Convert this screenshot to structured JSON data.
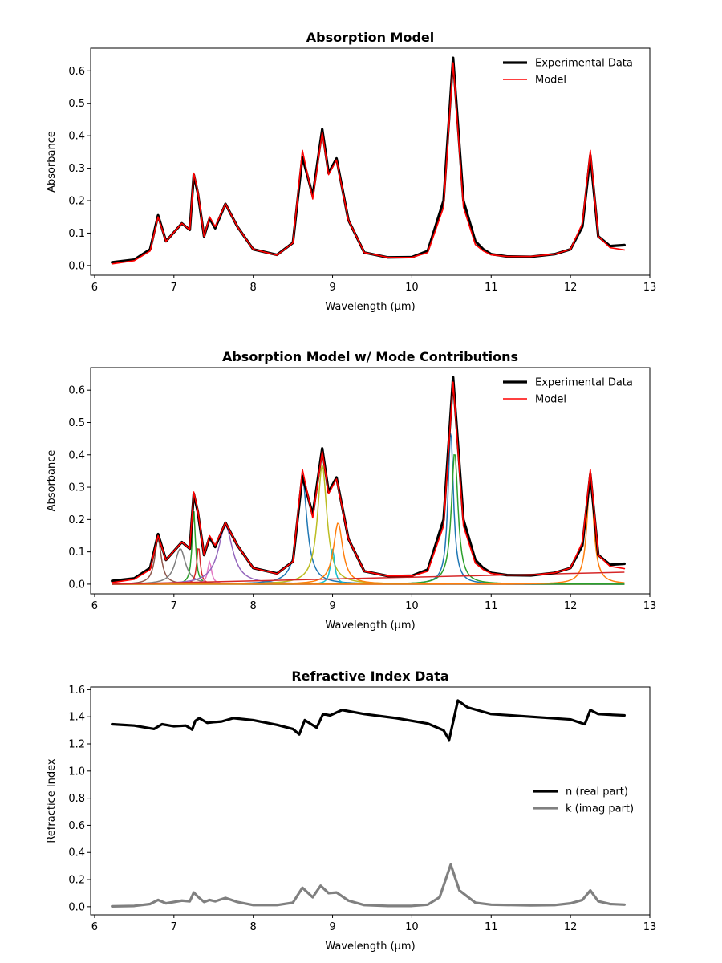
{
  "chart_data": [
    {
      "type": "line",
      "title": "Absorption Model",
      "xlabel": "Wavelength (μm)",
      "ylabel": "Absorbance",
      "xlim": [
        5.95,
        13.0
      ],
      "ylim": [
        -0.03,
        0.67
      ],
      "xticks": [
        6,
        7,
        8,
        9,
        10,
        11,
        12,
        13
      ],
      "xtick_labels": [
        "6",
        "7",
        "8",
        "9",
        "10",
        "11",
        "12",
        "13"
      ],
      "yticks": [
        0.0,
        0.1,
        0.2,
        0.3,
        0.4,
        0.5,
        0.6
      ],
      "ytick_labels": [
        "0.0",
        "0.1",
        "0.2",
        "0.3",
        "0.4",
        "0.5",
        "0.6"
      ],
      "grid": false,
      "legend": "top-right",
      "series": [
        {
          "name": "Experimental Data",
          "color": "#000000",
          "x": [
            6.22,
            6.5,
            6.7,
            6.8,
            6.9,
            7.1,
            7.2,
            7.25,
            7.3,
            7.38,
            7.45,
            7.52,
            7.65,
            7.8,
            8.0,
            8.3,
            8.5,
            8.62,
            8.75,
            8.87,
            8.95,
            9.05,
            9.2,
            9.4,
            9.7,
            10.0,
            10.2,
            10.4,
            10.52,
            10.65,
            10.8,
            10.9,
            11.0,
            11.2,
            11.5,
            11.8,
            12.0,
            12.15,
            12.25,
            12.35,
            12.5,
            12.68
          ],
          "y": [
            0.01,
            0.018,
            0.05,
            0.155,
            0.075,
            0.13,
            0.11,
            0.28,
            0.225,
            0.09,
            0.145,
            0.115,
            0.19,
            0.12,
            0.05,
            0.033,
            0.07,
            0.335,
            0.215,
            0.42,
            0.285,
            0.33,
            0.14,
            0.04,
            0.025,
            0.026,
            0.045,
            0.2,
            0.64,
            0.2,
            0.075,
            0.05,
            0.035,
            0.028,
            0.027,
            0.035,
            0.05,
            0.12,
            0.34,
            0.09,
            0.06,
            0.063
          ]
        },
        {
          "name": "Model",
          "color": "#ff0000",
          "x": [
            6.22,
            6.5,
            6.7,
            6.8,
            6.9,
            7.1,
            7.2,
            7.25,
            7.3,
            7.38,
            7.45,
            7.52,
            7.65,
            7.8,
            8.0,
            8.3,
            8.5,
            8.62,
            8.75,
            8.87,
            8.95,
            9.05,
            9.2,
            9.4,
            9.7,
            10.0,
            10.2,
            10.4,
            10.52,
            10.65,
            10.8,
            10.9,
            11.0,
            11.2,
            11.5,
            11.8,
            12.0,
            12.15,
            12.25,
            12.35,
            12.5,
            12.68
          ],
          "y": [
            0.005,
            0.015,
            0.045,
            0.15,
            0.075,
            0.13,
            0.11,
            0.285,
            0.23,
            0.09,
            0.15,
            0.12,
            0.19,
            0.12,
            0.05,
            0.032,
            0.07,
            0.355,
            0.205,
            0.41,
            0.28,
            0.325,
            0.14,
            0.04,
            0.025,
            0.025,
            0.04,
            0.18,
            0.625,
            0.18,
            0.065,
            0.045,
            0.033,
            0.028,
            0.028,
            0.035,
            0.05,
            0.13,
            0.355,
            0.09,
            0.055,
            0.048
          ]
        }
      ]
    },
    {
      "type": "line",
      "title": "Absorption Model w/ Mode Contributions",
      "xlabel": "Wavelength (μm)",
      "ylabel": "Absorbance",
      "xlim": [
        5.95,
        13.0
      ],
      "ylim": [
        -0.03,
        0.67
      ],
      "xticks": [
        6,
        7,
        8,
        9,
        10,
        11,
        12,
        13
      ],
      "xtick_labels": [
        "6",
        "7",
        "8",
        "9",
        "10",
        "11",
        "12",
        "13"
      ],
      "yticks": [
        0.0,
        0.1,
        0.2,
        0.3,
        0.4,
        0.5,
        0.6
      ],
      "ytick_labels": [
        "0.0",
        "0.1",
        "0.2",
        "0.3",
        "0.4",
        "0.5",
        "0.6"
      ],
      "grid": false,
      "legend": "top-right",
      "series": [
        {
          "name": "Experimental Data",
          "color": "#000000",
          "x": [
            6.22,
            6.5,
            6.7,
            6.8,
            6.9,
            7.1,
            7.2,
            7.25,
            7.3,
            7.38,
            7.45,
            7.52,
            7.65,
            7.8,
            8.0,
            8.3,
            8.5,
            8.62,
            8.75,
            8.87,
            8.95,
            9.05,
            9.2,
            9.4,
            9.7,
            10.0,
            10.2,
            10.4,
            10.52,
            10.65,
            10.8,
            10.9,
            11.0,
            11.2,
            11.5,
            11.8,
            12.0,
            12.15,
            12.25,
            12.35,
            12.5,
            12.68
          ],
          "y": [
            0.01,
            0.018,
            0.05,
            0.155,
            0.075,
            0.13,
            0.11,
            0.28,
            0.225,
            0.09,
            0.145,
            0.115,
            0.19,
            0.12,
            0.05,
            0.033,
            0.07,
            0.335,
            0.215,
            0.42,
            0.285,
            0.33,
            0.14,
            0.04,
            0.025,
            0.026,
            0.045,
            0.2,
            0.64,
            0.2,
            0.075,
            0.05,
            0.035,
            0.028,
            0.027,
            0.035,
            0.05,
            0.12,
            0.34,
            0.09,
            0.06,
            0.063
          ]
        },
        {
          "name": "Model",
          "color": "#ff0000",
          "x": [
            6.22,
            6.5,
            6.7,
            6.8,
            6.9,
            7.1,
            7.2,
            7.25,
            7.3,
            7.38,
            7.45,
            7.52,
            7.65,
            7.8,
            8.0,
            8.3,
            8.5,
            8.62,
            8.75,
            8.87,
            8.95,
            9.05,
            9.2,
            9.4,
            9.7,
            10.0,
            10.2,
            10.4,
            10.52,
            10.65,
            10.8,
            10.9,
            11.0,
            11.2,
            11.5,
            11.8,
            12.0,
            12.15,
            12.25,
            12.35,
            12.5,
            12.68
          ],
          "y": [
            0.005,
            0.015,
            0.045,
            0.15,
            0.075,
            0.13,
            0.11,
            0.285,
            0.23,
            0.09,
            0.15,
            0.12,
            0.19,
            0.12,
            0.05,
            0.032,
            0.07,
            0.355,
            0.205,
            0.41,
            0.28,
            0.325,
            0.14,
            0.04,
            0.025,
            0.025,
            0.04,
            0.18,
            0.625,
            0.18,
            0.065,
            0.045,
            0.033,
            0.028,
            0.028,
            0.035,
            0.05,
            0.13,
            0.355,
            0.09,
            0.055,
            0.048
          ]
        }
      ],
      "mode_contributions": [
        {
          "center": 6.8,
          "peak": 0.14,
          "width": 0.05,
          "color": "#8c564b"
        },
        {
          "center": 7.08,
          "peak": 0.11,
          "width": 0.08,
          "color": "#7f7f7f"
        },
        {
          "center": 7.25,
          "peak": 0.23,
          "width": 0.025,
          "color": "#2ca02c"
        },
        {
          "center": 7.31,
          "peak": 0.12,
          "width": 0.025,
          "color": "#d62728"
        },
        {
          "center": 7.45,
          "peak": 0.07,
          "width": 0.03,
          "color": "#e377c2"
        },
        {
          "center": 7.65,
          "peak": 0.18,
          "width": 0.11,
          "color": "#9467bd"
        },
        {
          "center": 8.62,
          "peak": 0.33,
          "width": 0.07,
          "color": "#1f77b4"
        },
        {
          "center": 8.87,
          "peak": 0.37,
          "width": 0.07,
          "color": "#bcbd22"
        },
        {
          "center": 9.0,
          "peak": 0.11,
          "width": 0.03,
          "color": "#17becf"
        },
        {
          "center": 9.07,
          "peak": 0.19,
          "width": 0.07,
          "color": "#ff7f0e"
        },
        {
          "center": 10.49,
          "peak": 0.48,
          "width": 0.04,
          "color": "#1f77b4"
        },
        {
          "center": 10.54,
          "peak": 0.41,
          "width": 0.05,
          "color": "#2ca02c"
        },
        {
          "center": 12.25,
          "peak": 0.33,
          "width": 0.05,
          "color": "#ff7f0e"
        }
      ],
      "background_line": {
        "x": [
          6.22,
          12.68
        ],
        "y": [
          0.0,
          0.037
        ],
        "color": "#d62728"
      }
    },
    {
      "type": "line",
      "title": "Refractive Index Data",
      "xlabel": "Wavelength (μm)",
      "ylabel": "Refractice Index",
      "xlim": [
        5.95,
        13.0
      ],
      "ylim": [
        -0.06,
        1.62
      ],
      "xticks": [
        6,
        7,
        8,
        9,
        10,
        11,
        12,
        13
      ],
      "xtick_labels": [
        "6",
        "7",
        "8",
        "9",
        "10",
        "11",
        "12",
        "13"
      ],
      "yticks": [
        0.0,
        0.2,
        0.4,
        0.6,
        0.8,
        1.0,
        1.2,
        1.4,
        1.6
      ],
      "ytick_labels": [
        "0.0",
        "0.2",
        "0.4",
        "0.6",
        "0.8",
        "1.0",
        "1.2",
        "1.4",
        "1.6"
      ],
      "grid": false,
      "legend": "center-right",
      "series": [
        {
          "name": "n (real part)",
          "color": "#000000",
          "x": [
            6.22,
            6.5,
            6.75,
            6.85,
            7.0,
            7.15,
            7.23,
            7.27,
            7.32,
            7.42,
            7.5,
            7.6,
            7.75,
            8.0,
            8.3,
            8.5,
            8.58,
            8.65,
            8.8,
            8.88,
            8.97,
            9.12,
            9.4,
            9.8,
            10.2,
            10.4,
            10.47,
            10.58,
            10.7,
            11.0,
            11.5,
            12.0,
            12.18,
            12.25,
            12.35,
            12.5,
            12.68
          ],
          "y": [
            1.345,
            1.335,
            1.31,
            1.345,
            1.33,
            1.335,
            1.305,
            1.37,
            1.39,
            1.355,
            1.36,
            1.365,
            1.39,
            1.375,
            1.34,
            1.31,
            1.27,
            1.375,
            1.32,
            1.42,
            1.41,
            1.45,
            1.42,
            1.39,
            1.35,
            1.3,
            1.23,
            1.52,
            1.47,
            1.42,
            1.4,
            1.38,
            1.345,
            1.45,
            1.42,
            1.415,
            1.41
          ]
        },
        {
          "name": "k (imag part)",
          "color": "#808080",
          "x": [
            6.22,
            6.5,
            6.7,
            6.8,
            6.9,
            7.1,
            7.2,
            7.25,
            7.3,
            7.38,
            7.45,
            7.52,
            7.65,
            7.8,
            8.0,
            8.3,
            8.5,
            8.62,
            8.75,
            8.85,
            8.95,
            9.05,
            9.2,
            9.4,
            9.7,
            10.0,
            10.2,
            10.35,
            10.49,
            10.6,
            10.8,
            11.0,
            11.5,
            11.8,
            12.0,
            12.15,
            12.25,
            12.35,
            12.5,
            12.68
          ],
          "y": [
            0.003,
            0.006,
            0.02,
            0.05,
            0.025,
            0.045,
            0.04,
            0.105,
            0.075,
            0.035,
            0.05,
            0.04,
            0.065,
            0.035,
            0.012,
            0.012,
            0.03,
            0.14,
            0.07,
            0.155,
            0.1,
            0.105,
            0.045,
            0.012,
            0.006,
            0.006,
            0.015,
            0.07,
            0.31,
            0.12,
            0.03,
            0.015,
            0.01,
            0.012,
            0.025,
            0.05,
            0.12,
            0.04,
            0.02,
            0.015
          ]
        }
      ]
    }
  ]
}
